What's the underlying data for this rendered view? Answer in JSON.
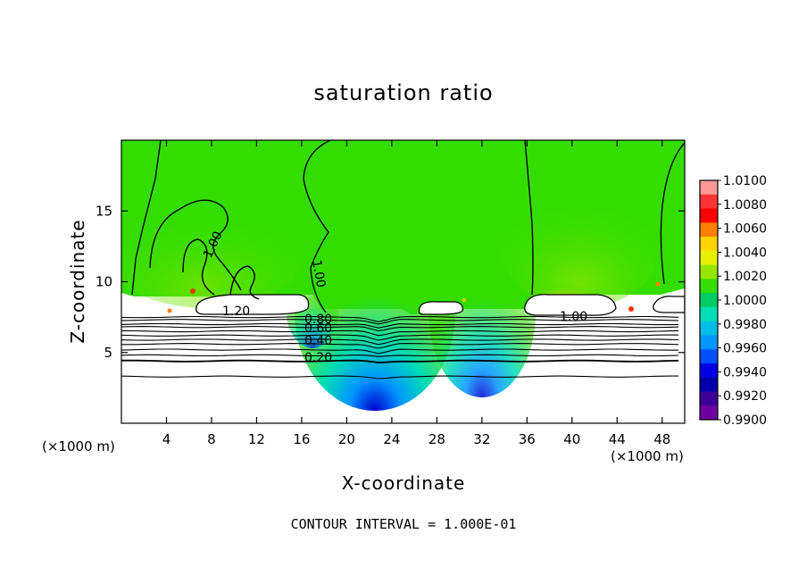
{
  "chart_data": {
    "type": "heatmap",
    "title": "saturation ratio",
    "xlabel": "X-coordinate",
    "ylabel": "Z-coordinate",
    "x_unit": "(×1000 m)",
    "z_unit": "(×1000 m)",
    "xlim": [
      0,
      50
    ],
    "ylim": [
      0,
      20
    ],
    "x_ticks": [
      4,
      8,
      12,
      16,
      20,
      24,
      28,
      32,
      36,
      40,
      44,
      48
    ],
    "y_ticks": [
      5,
      10,
      15
    ],
    "footer": "CONTOUR INTERVAL = 1.000E-01",
    "colorbar": {
      "labels": [
        "1.0100",
        "1.0080",
        "1.0060",
        "1.0040",
        "1.0020",
        "1.0000",
        "0.9980",
        "0.9960",
        "0.9940",
        "0.9920",
        "0.9900"
      ],
      "colors": [
        "#ff9999",
        "#ff3333",
        "#ff0000",
        "#ff7f00",
        "#ffd200",
        "#e6f000",
        "#96e600",
        "#33dd00",
        "#00cc66",
        "#00dcb4",
        "#00bee6",
        "#0096ff",
        "#0050ff",
        "#0000e6",
        "#0000aa",
        "#3c0096",
        "#6e00a0"
      ]
    },
    "contour_labels": [
      {
        "text": "1.20",
        "x": 10.5,
        "z": 7.7
      },
      {
        "text": "0.80",
        "x": 19.4,
        "z": 7.1
      },
      {
        "text": "0.60",
        "x": 19.4,
        "z": 6.6
      },
      {
        "text": "0.40",
        "x": 19.4,
        "z": 5.8
      },
      {
        "text": "0.20",
        "x": 19.4,
        "z": 4.6
      },
      {
        "text": "1.00",
        "x": 8.2,
        "z": 12.4
      },
      {
        "text": "1.00",
        "x": 17.7,
        "z": 10.3
      },
      {
        "text": "1.00",
        "x": 39.3,
        "z": 7.6
      }
    ],
    "level_lines_z": [
      7.5,
      7.3,
      7.0,
      6.8,
      6.5,
      6.2,
      5.9,
      5.6,
      5.2,
      4.8,
      4.4,
      3.3
    ]
  }
}
